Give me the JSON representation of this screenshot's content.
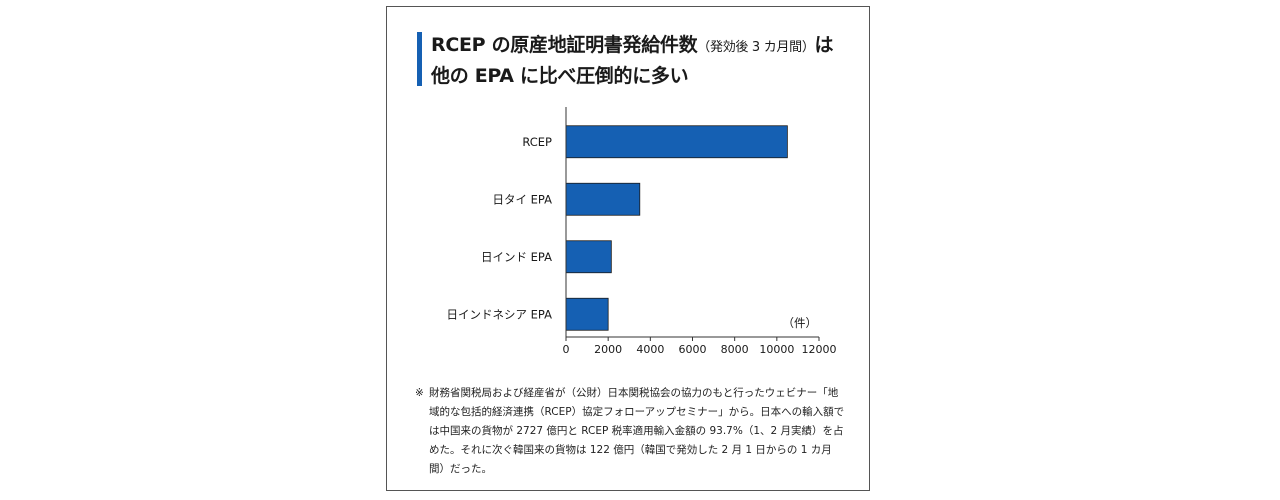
{
  "title": {
    "line1_main": "RCEP の原産地証明書発給件数",
    "line1_sub": "（発効後 3 カ月間）",
    "line1_end": "は",
    "line2": "他の EPA に比べ圧倒的に多い"
  },
  "chart_data": {
    "type": "bar",
    "orientation": "horizontal",
    "categories": [
      "RCEP",
      "日タイ EPA",
      "日インド EPA",
      "日インドネシア EPA"
    ],
    "values": [
      10500,
      3500,
      2150,
      2000
    ],
    "xlim": [
      0,
      12000
    ],
    "xticks": [
      0,
      2000,
      4000,
      6000,
      8000,
      10000,
      12000
    ],
    "unit_label": "（件）",
    "bar_color": "#1560b3",
    "title": "",
    "xlabel": "",
    "ylabel": ""
  },
  "note": {
    "mark": "※",
    "text": "財務省関税局および経産省が（公財）日本関税協会の協力のもと行ったウェビナー「地域的な包括的経済連携（RCEP）協定フォローアップセミナー」から。日本への輸入額では中国来の貨物が 2727 億円と RCEP 税率適用輸入金額の 93.7%（1、2 月実績）を占めた。それに次ぐ韓国来の貨物は 122 億円（韓国で発効した 2 月 1 日からの 1 カ月間）だった。"
  }
}
